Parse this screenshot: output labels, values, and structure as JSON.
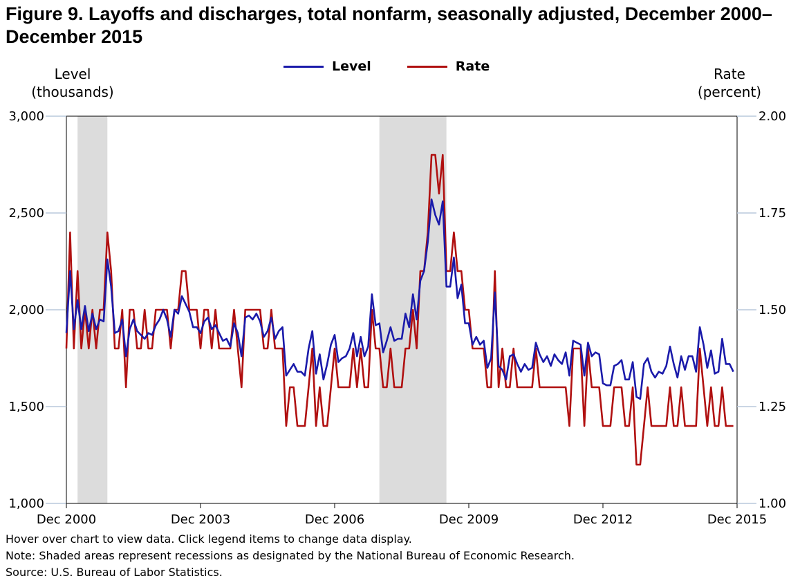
{
  "title": "Figure 9. Layoffs and discharges, total nonfarm, seasonally adjusted, December 2000–December 2015",
  "legend": {
    "level": "Level",
    "rate": "Rate"
  },
  "axes": {
    "left_title": "Level (thousands)",
    "right_title": "Rate (percent)",
    "left_ticks": [
      "1,000",
      "1,500",
      "2,000",
      "2,500",
      "3,000"
    ],
    "right_ticks": [
      "1.00",
      "1.25",
      "1.50",
      "1.75",
      "2.00"
    ],
    "x_ticks": [
      "Dec 2000",
      "Dec 2003",
      "Dec 2006",
      "Dec 2009",
      "Dec 2012",
      "Dec 2015"
    ]
  },
  "footnotes": {
    "hover": "Hover over chart to view data. Click legend items to change data display.",
    "note": "Note: Shaded areas represent recessions as designated by the National Bureau of Economic Research.",
    "source": "Source: U.S. Bureau of Labor Statistics."
  },
  "colors": {
    "level": "#1a1aaa",
    "rate": "#b01010",
    "recession": "#dcdcdc",
    "grid": "#b8c8dc"
  },
  "chart_data": {
    "type": "line",
    "x_start": "Dec 2000",
    "x_end": "Dec 2015",
    "y_left_range": [
      1000,
      3000
    ],
    "y_right_range": [
      1.0,
      2.0
    ],
    "recessions": [
      [
        "Mar 2001",
        "Nov 2001"
      ],
      [
        "Dec 2007",
        "Jun 2009"
      ]
    ],
    "series": [
      {
        "name": "Level",
        "axis": "left",
        "values": [
          1880,
          2200,
          1900,
          2050,
          1900,
          2020,
          1890,
          1980,
          1900,
          1950,
          1940,
          2260,
          2120,
          1880,
          1890,
          1950,
          1760,
          1900,
          1950,
          1890,
          1870,
          1850,
          1880,
          1870,
          1920,
          1950,
          2000,
          1950,
          1860,
          2000,
          1980,
          2070,
          2030,
          1990,
          1910,
          1910,
          1880,
          1940,
          1960,
          1900,
          1920,
          1880,
          1840,
          1850,
          1810,
          1930,
          1880,
          1760,
          1960,
          1970,
          1950,
          1980,
          1940,
          1860,
          1890,
          1960,
          1850,
          1890,
          1910,
          1660,
          1690,
          1720,
          1680,
          1680,
          1660,
          1800,
          1890,
          1670,
          1770,
          1640,
          1720,
          1820,
          1870,
          1730,
          1750,
          1760,
          1800,
          1880,
          1760,
          1860,
          1760,
          1810,
          2080,
          1920,
          1930,
          1780,
          1840,
          1910,
          1840,
          1850,
          1850,
          1980,
          1910,
          2080,
          1950,
          2150,
          2200,
          2350,
          2570,
          2490,
          2440,
          2560,
          2120,
          2120,
          2270,
          2060,
          2130,
          1930,
          1930,
          1820,
          1860,
          1820,
          1840,
          1700,
          1750,
          2090,
          1710,
          1690,
          1640,
          1760,
          1770,
          1720,
          1680,
          1720,
          1690,
          1700,
          1830,
          1770,
          1730,
          1760,
          1710,
          1770,
          1740,
          1720,
          1780,
          1660,
          1840,
          1830,
          1820,
          1660,
          1830,
          1760,
          1780,
          1770,
          1620,
          1610,
          1610,
          1710,
          1720,
          1740,
          1640,
          1640,
          1730,
          1550,
          1540,
          1720,
          1750,
          1680,
          1650,
          1680,
          1670,
          1710,
          1810,
          1720,
          1650,
          1760,
          1690,
          1760,
          1760,
          1680,
          1910,
          1820,
          1700,
          1790,
          1670,
          1680,
          1850,
          1720,
          1720,
          1680
        ]
      },
      {
        "name": "Rate",
        "axis": "right",
        "values": [
          1.4,
          1.7,
          1.4,
          1.6,
          1.4,
          1.5,
          1.4,
          1.5,
          1.4,
          1.5,
          1.5,
          1.7,
          1.6,
          1.4,
          1.4,
          1.5,
          1.3,
          1.5,
          1.5,
          1.4,
          1.4,
          1.5,
          1.4,
          1.4,
          1.5,
          1.5,
          1.5,
          1.5,
          1.4,
          1.5,
          1.5,
          1.6,
          1.6,
          1.5,
          1.5,
          1.5,
          1.4,
          1.5,
          1.5,
          1.4,
          1.5,
          1.4,
          1.4,
          1.4,
          1.4,
          1.5,
          1.4,
          1.3,
          1.5,
          1.5,
          1.5,
          1.5,
          1.5,
          1.4,
          1.4,
          1.5,
          1.4,
          1.4,
          1.4,
          1.2,
          1.3,
          1.3,
          1.2,
          1.2,
          1.2,
          1.3,
          1.4,
          1.2,
          1.3,
          1.2,
          1.2,
          1.3,
          1.4,
          1.3,
          1.3,
          1.3,
          1.3,
          1.4,
          1.3,
          1.4,
          1.3,
          1.3,
          1.5,
          1.4,
          1.4,
          1.3,
          1.3,
          1.4,
          1.3,
          1.3,
          1.3,
          1.4,
          1.4,
          1.5,
          1.4,
          1.6,
          1.6,
          1.7,
          1.9,
          1.9,
          1.8,
          1.9,
          1.6,
          1.6,
          1.7,
          1.6,
          1.6,
          1.5,
          1.5,
          1.4,
          1.4,
          1.4,
          1.4,
          1.3,
          1.3,
          1.6,
          1.3,
          1.4,
          1.3,
          1.3,
          1.4,
          1.3,
          1.3,
          1.3,
          1.3,
          1.3,
          1.4,
          1.3,
          1.3,
          1.3,
          1.3,
          1.3,
          1.3,
          1.3,
          1.3,
          1.2,
          1.4,
          1.4,
          1.4,
          1.2,
          1.4,
          1.3,
          1.3,
          1.3,
          1.2,
          1.2,
          1.2,
          1.3,
          1.3,
          1.3,
          1.2,
          1.2,
          1.3,
          1.1,
          1.1,
          1.2,
          1.3,
          1.2,
          1.2,
          1.2,
          1.2,
          1.2,
          1.3,
          1.2,
          1.2,
          1.3,
          1.2,
          1.2,
          1.2,
          1.2,
          1.4,
          1.3,
          1.2,
          1.3,
          1.2,
          1.2,
          1.3,
          1.2,
          1.2,
          1.2
        ]
      }
    ],
    "grid": true,
    "legend_position": "top"
  }
}
